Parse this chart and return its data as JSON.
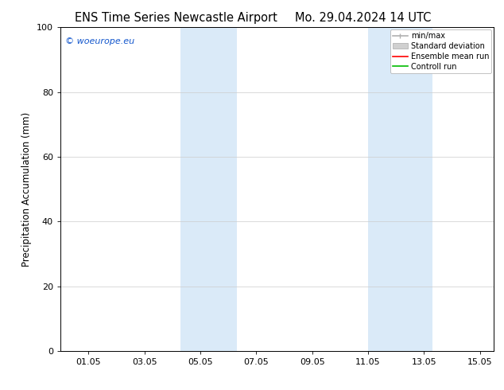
{
  "title_left": "ENS Time Series Newcastle Airport",
  "title_right": "Mo. 29.04.2024 14 UTC",
  "ylabel": "Precipitation Accumulation (mm)",
  "ylim": [
    0,
    100
  ],
  "yticks": [
    0,
    20,
    40,
    60,
    80,
    100
  ],
  "background_color": "#ffffff",
  "plot_bg_color": "#ffffff",
  "shaded_bands": [
    {
      "x_start": 4.3,
      "x_end": 6.3,
      "color": "#daeaf8"
    },
    {
      "x_start": 11.0,
      "x_end": 13.3,
      "color": "#daeaf8"
    }
  ],
  "x_tick_labels": [
    "01.05",
    "03.05",
    "05.05",
    "07.05",
    "09.05",
    "11.05",
    "13.05",
    "15.05"
  ],
  "x_tick_positions": [
    1,
    3,
    5,
    7,
    9,
    11,
    13,
    15
  ],
  "xlim": [
    0.0,
    15.5
  ],
  "copyright_text": "© woeurope.eu",
  "copyright_color": "#1155cc",
  "legend_items": [
    {
      "label": "min/max",
      "color": "#b0b0b0",
      "type": "line_range"
    },
    {
      "label": "Standard deviation",
      "color": "#d0d0d0",
      "type": "fill"
    },
    {
      "label": "Ensemble mean run",
      "color": "#ff0000",
      "type": "line"
    },
    {
      "label": "Controll run",
      "color": "#00bb00",
      "type": "line"
    }
  ],
  "grid_color": "#cccccc",
  "spine_color": "#000000",
  "font_size_title": 10.5,
  "font_size_legend": 7,
  "font_size_ticks": 8,
  "font_size_ylabel": 8.5,
  "font_size_copyright": 8
}
